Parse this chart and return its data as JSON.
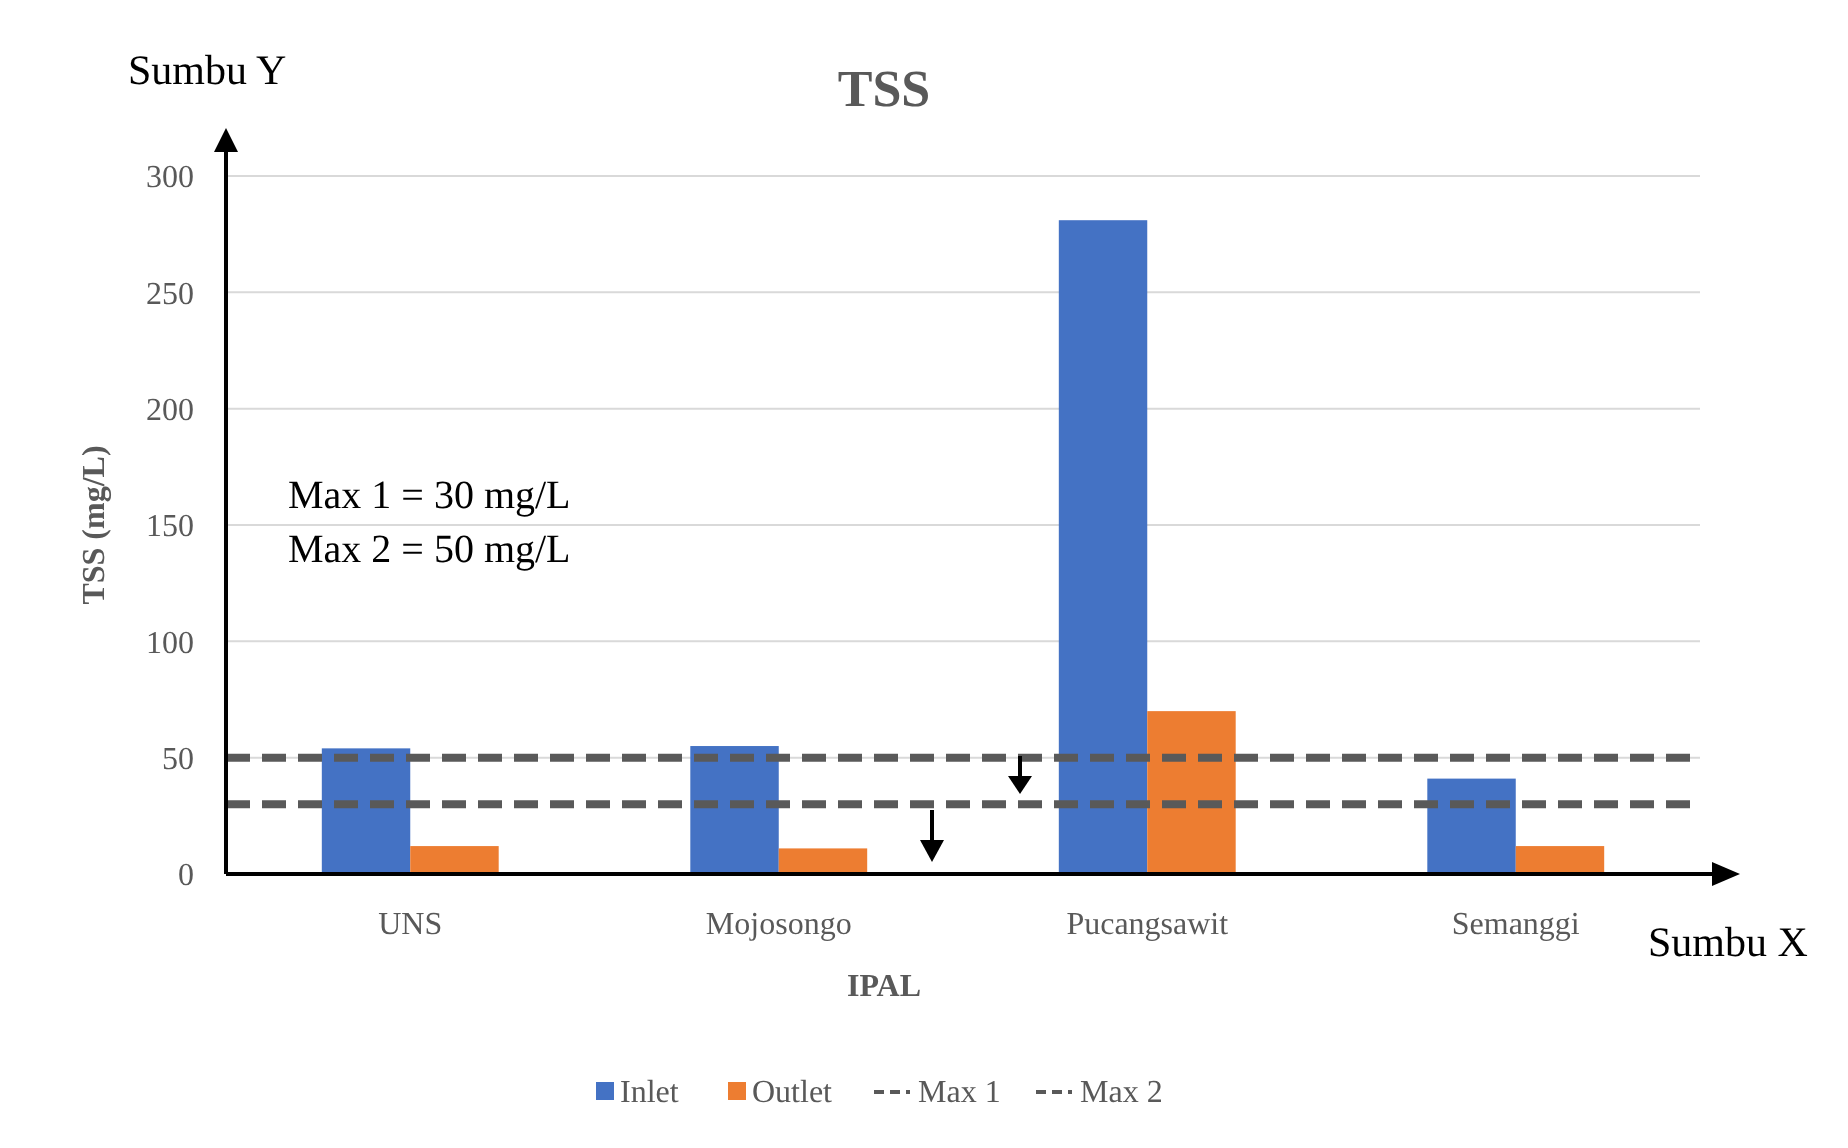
{
  "chart_data": {
    "type": "bar",
    "title": "TSS",
    "xlabel": "IPAL",
    "ylabel": "TSS (mg/L)",
    "categories": [
      "UNS",
      "Mojosongo",
      "Pucangsawit",
      "Semanggi"
    ],
    "series": [
      {
        "name": "Inlet",
        "color": "#4472c4",
        "values": [
          54,
          55,
          281,
          41
        ]
      },
      {
        "name": "Outlet",
        "color": "#ed7d31",
        "values": [
          12,
          11,
          70,
          12
        ]
      }
    ],
    "ylim": [
      0,
      300
    ],
    "yticks": [
      0,
      50,
      100,
      150,
      200,
      250,
      300
    ],
    "grid": "y",
    "legend": "bottom",
    "ref_lines": [
      {
        "axis": "y",
        "value": 30,
        "label": "Max 1",
        "color": "#595959",
        "line_style": "dashed"
      },
      {
        "axis": "y",
        "value": 50,
        "label": "Max 2",
        "color": "#595959",
        "line_style": "dashed"
      }
    ],
    "annotations": [
      "Max 1 = 30 mg/L",
      "Max 2 = 50 mg/L",
      "Sumbu Y",
      "Sumbu X"
    ]
  }
}
